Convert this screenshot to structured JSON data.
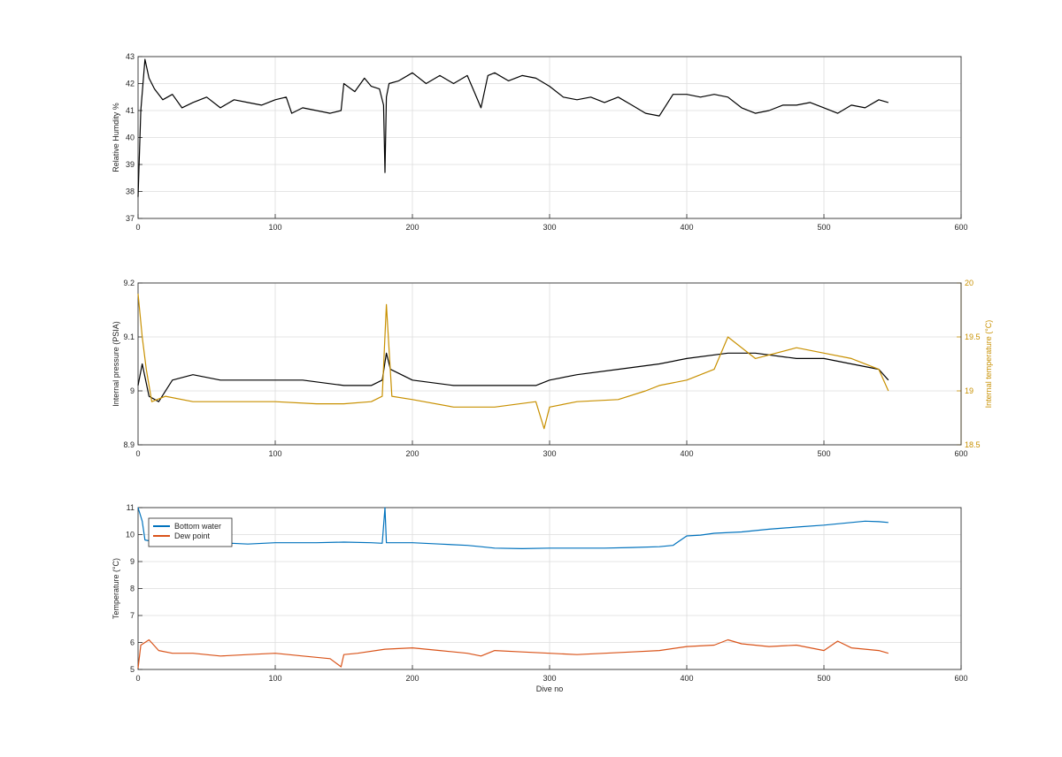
{
  "chart_data": [
    {
      "type": "line",
      "xlabel": "",
      "ylabel": "Relative Humdity %",
      "xlim": [
        0,
        600
      ],
      "ylim": [
        37,
        43
      ],
      "xticks": [
        "0",
        "100",
        "200",
        "300",
        "400",
        "500",
        "600"
      ],
      "yticks": [
        "37",
        "38",
        "39",
        "40",
        "41",
        "42",
        "43"
      ],
      "grid": true,
      "series": [
        {
          "color": "#000000",
          "x": [
            0,
            2,
            5,
            8,
            12,
            18,
            25,
            32,
            40,
            50,
            60,
            70,
            80,
            90,
            100,
            108,
            112,
            120,
            130,
            140,
            148,
            150,
            158,
            165,
            170,
            176,
            179,
            180,
            181,
            183,
            190,
            200,
            210,
            220,
            230,
            240,
            245,
            250,
            255,
            260,
            270,
            280,
            290,
            300,
            310,
            320,
            330,
            340,
            350,
            360,
            370,
            380,
            390,
            400,
            410,
            420,
            430,
            440,
            450,
            460,
            470,
            480,
            490,
            500,
            510,
            520,
            530,
            540,
            547
          ],
          "y": [
            37.8,
            41.0,
            42.9,
            42.2,
            41.8,
            41.4,
            41.6,
            41.1,
            41.3,
            41.5,
            41.1,
            41.4,
            41.3,
            41.2,
            41.4,
            41.5,
            40.9,
            41.1,
            41.0,
            40.9,
            41.0,
            42.0,
            41.7,
            42.2,
            41.9,
            41.8,
            41.2,
            38.7,
            41.5,
            42.0,
            42.1,
            42.4,
            42.0,
            42.3,
            42.0,
            42.3,
            41.7,
            41.1,
            42.3,
            42.4,
            42.1,
            42.3,
            42.2,
            41.9,
            41.5,
            41.4,
            41.5,
            41.3,
            41.5,
            41.2,
            40.9,
            40.8,
            41.6,
            41.6,
            41.5,
            41.6,
            41.5,
            41.1,
            40.9,
            41.0,
            41.2,
            41.2,
            41.3,
            41.1,
            40.9,
            41.2,
            41.1,
            41.4,
            41.3
          ]
        }
      ]
    },
    {
      "type": "line",
      "xlabel": "",
      "ylabel": "Internal pressure (PSIA)",
      "y2label": "Internal temperature (°C)",
      "xlim": [
        0,
        600
      ],
      "ylim": [
        8.9,
        9.2
      ],
      "y2lim": [
        18.5,
        20
      ],
      "xticks": [
        "0",
        "100",
        "200",
        "300",
        "400",
        "500",
        "600"
      ],
      "yticks": [
        "8.9",
        "9",
        "9.1",
        "9.2"
      ],
      "y2ticks": [
        "18.5",
        "19",
        "19.5",
        "20"
      ],
      "grid": true,
      "series": [
        {
          "axis": "left",
          "color": "#000000",
          "x": [
            0,
            3,
            8,
            15,
            25,
            40,
            60,
            80,
            100,
            120,
            150,
            170,
            178,
            181,
            184,
            200,
            230,
            260,
            290,
            300,
            320,
            350,
            380,
            400,
            430,
            450,
            480,
            500,
            520,
            540,
            547
          ],
          "y": [
            9.01,
            9.05,
            8.99,
            8.98,
            9.02,
            9.03,
            9.02,
            9.02,
            9.02,
            9.02,
            9.01,
            9.01,
            9.02,
            9.07,
            9.04,
            9.02,
            9.01,
            9.01,
            9.01,
            9.02,
            9.03,
            9.04,
            9.05,
            9.06,
            9.07,
            9.07,
            9.06,
            9.06,
            9.05,
            9.04,
            9.02
          ]
        },
        {
          "axis": "right",
          "color": "#c89000",
          "x": [
            0,
            3,
            6,
            10,
            20,
            40,
            60,
            80,
            100,
            130,
            150,
            170,
            178,
            181,
            185,
            200,
            230,
            260,
            290,
            296,
            300,
            320,
            350,
            370,
            380,
            400,
            420,
            430,
            450,
            480,
            500,
            520,
            540,
            547
          ],
          "y": [
            19.9,
            19.5,
            19.2,
            18.9,
            18.95,
            18.9,
            18.9,
            18.9,
            18.9,
            18.88,
            18.88,
            18.9,
            18.95,
            19.8,
            18.95,
            18.92,
            18.85,
            18.85,
            18.9,
            18.65,
            18.85,
            18.9,
            18.92,
            19.0,
            19.05,
            19.1,
            19.2,
            19.5,
            19.3,
            19.4,
            19.35,
            19.3,
            19.2,
            19.0
          ]
        }
      ]
    },
    {
      "type": "line",
      "xlabel": "Dive no",
      "ylabel": "Temperature (°C)",
      "xlim": [
        0,
        600
      ],
      "ylim": [
        5,
        11
      ],
      "xticks": [
        "0",
        "100",
        "200",
        "300",
        "400",
        "500",
        "600"
      ],
      "yticks": [
        "5",
        "6",
        "7",
        "8",
        "9",
        "10",
        "11"
      ],
      "grid": true,
      "legend": "top-left",
      "series": [
        {
          "name": "Bottom water",
          "color": "#0072bd",
          "x": [
            0,
            3,
            5,
            10,
            20,
            40,
            60,
            80,
            100,
            130,
            150,
            170,
            178,
            180,
            181,
            183,
            200,
            220,
            240,
            250,
            260,
            280,
            300,
            320,
            340,
            360,
            380,
            390,
            400,
            410,
            420,
            440,
            460,
            480,
            500,
            520,
            530,
            540,
            547
          ],
          "y": [
            11.0,
            10.5,
            9.8,
            9.75,
            9.75,
            9.75,
            9.7,
            9.65,
            9.7,
            9.7,
            9.72,
            9.7,
            9.68,
            11.0,
            9.7,
            9.7,
            9.7,
            9.65,
            9.6,
            9.55,
            9.5,
            9.48,
            9.5,
            9.5,
            9.5,
            9.52,
            9.55,
            9.6,
            9.95,
            9.98,
            10.05,
            10.1,
            10.2,
            10.28,
            10.35,
            10.45,
            10.5,
            10.48,
            10.45
          ]
        },
        {
          "name": "Dew point",
          "color": "#d95319",
          "x": [
            0,
            2,
            5,
            8,
            15,
            25,
            40,
            60,
            80,
            100,
            120,
            140,
            148,
            150,
            160,
            180,
            200,
            220,
            240,
            250,
            260,
            280,
            300,
            320,
            340,
            360,
            380,
            400,
            420,
            430,
            440,
            460,
            480,
            500,
            510,
            520,
            540,
            547
          ],
          "y": [
            5.05,
            5.9,
            6.0,
            6.1,
            5.7,
            5.6,
            5.6,
            5.5,
            5.55,
            5.6,
            5.5,
            5.4,
            5.1,
            5.55,
            5.6,
            5.75,
            5.8,
            5.7,
            5.6,
            5.5,
            5.7,
            5.65,
            5.6,
            5.55,
            5.6,
            5.65,
            5.7,
            5.85,
            5.9,
            6.1,
            5.95,
            5.85,
            5.9,
            5.7,
            6.05,
            5.8,
            5.7,
            5.6
          ]
        }
      ]
    }
  ]
}
